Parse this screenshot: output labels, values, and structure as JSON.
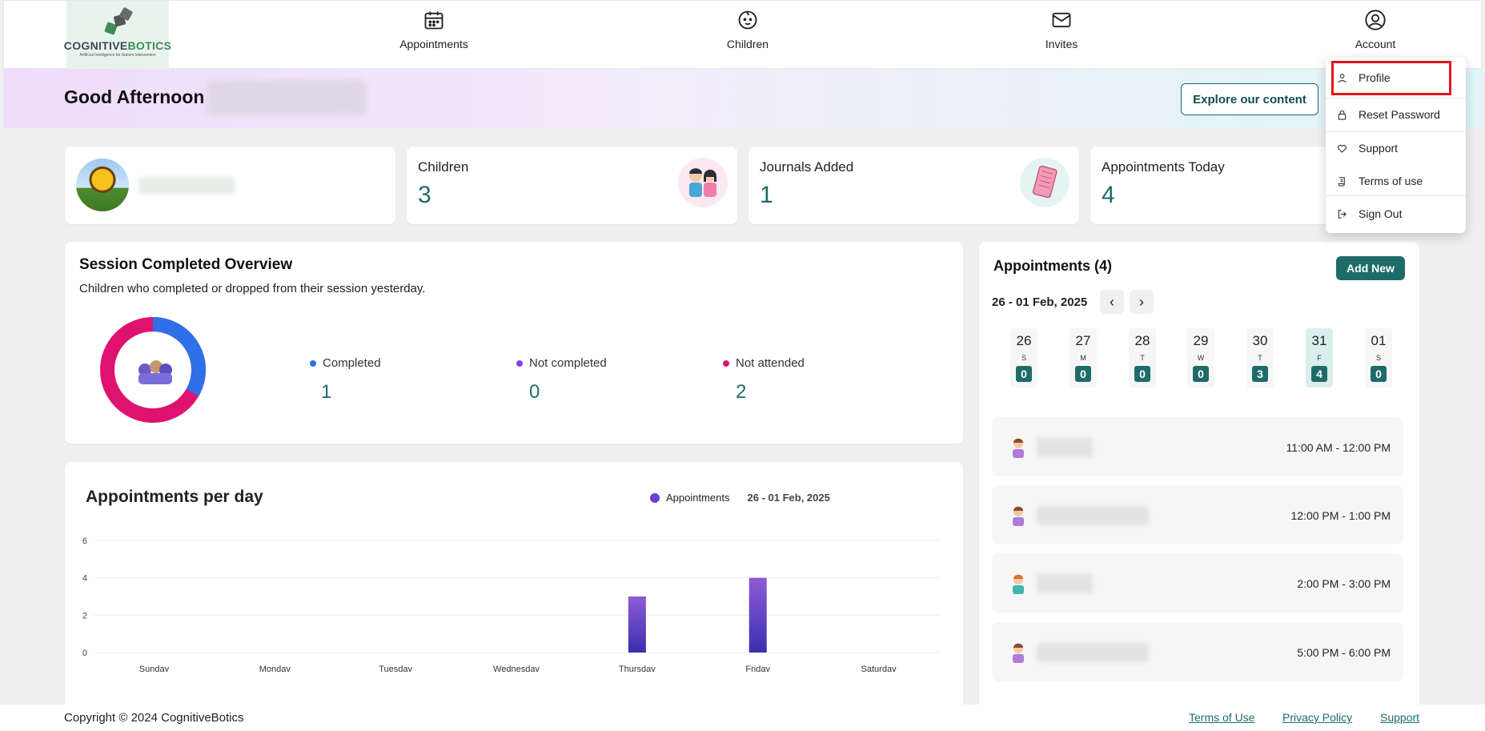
{
  "nav": {
    "logo": {
      "brand_a": "COGNITIVE",
      "brand_b": "BOTICS",
      "tagline": "Artificial Intelligence for Autism Intervention"
    },
    "items": [
      {
        "label": "Appointments",
        "icon": "calendar-icon"
      },
      {
        "label": "Children",
        "icon": "baby-face-icon"
      },
      {
        "label": "Invites",
        "icon": "envelope-icon"
      },
      {
        "label": "Account",
        "icon": "user-circle-icon"
      }
    ]
  },
  "banner": {
    "greeting": "Good Afternoon",
    "explore_label": "Explore our content"
  },
  "stats": [
    {
      "title": "Children",
      "value": "3"
    },
    {
      "title": "Journals Added",
      "value": "1"
    },
    {
      "title": "Appointments Today",
      "value": "4"
    }
  ],
  "session": {
    "title": "Session Completed Overview",
    "subtitle": "Children who completed or dropped from their session yesterday.",
    "legend": [
      {
        "label": "Completed",
        "value": "1",
        "color": "#2f6fe8"
      },
      {
        "label": "Not completed",
        "value": "0",
        "color": "#8a3ff0"
      },
      {
        "label": "Not attended",
        "value": "2",
        "color": "#e0126f"
      }
    ]
  },
  "chart_data": {
    "type": "bar",
    "title": "Appointments per day",
    "categories": [
      "Sundav",
      "Mondav",
      "Tuesdav",
      "Wednesdav",
      "Thursdav",
      "Fridav",
      "Saturdav"
    ],
    "series": [
      {
        "name": "Appointments",
        "values": [
          0,
          0,
          0,
          0,
          3,
          4,
          0
        ]
      }
    ],
    "ylim": [
      0,
      6
    ],
    "yticks": [
      "0",
      "2",
      "4",
      "6"
    ],
    "date_range": "26 - 01 Feb, 2025",
    "colors": {
      "top": "#8f5bd6",
      "bottom": "#3a2fb0"
    },
    "grid": true,
    "legend_position": "top-right"
  },
  "appointments": {
    "title": "Appointments (4)",
    "add_label": "Add New",
    "range_label": "26 - 01 Feb, 2025",
    "prev": "‹",
    "next": "›",
    "days": [
      {
        "num": "26",
        "name": "S",
        "count": "0"
      },
      {
        "num": "27",
        "name": "M",
        "count": "0"
      },
      {
        "num": "28",
        "name": "T",
        "count": "0"
      },
      {
        "num": "29",
        "name": "W",
        "count": "0"
      },
      {
        "num": "30",
        "name": "T",
        "count": "3"
      },
      {
        "num": "31",
        "name": "F",
        "count": "4",
        "active": true
      },
      {
        "num": "01",
        "name": "S",
        "count": "0"
      }
    ],
    "items": [
      {
        "time": "11:00 AM - 12:00 PM"
      },
      {
        "time": "12:00 PM - 1:00 PM"
      },
      {
        "time": "2:00 PM - 3:00 PM"
      },
      {
        "time": "5:00 PM - 6:00 PM"
      }
    ]
  },
  "account_menu": {
    "items": [
      {
        "label": "Profile",
        "icon": "user-icon"
      },
      {
        "label": "Reset Password",
        "icon": "lock-icon"
      },
      {
        "label": "Support",
        "icon": "heart-hands-icon"
      },
      {
        "label": "Terms of use",
        "icon": "scroll-icon"
      },
      {
        "label": "Sign Out",
        "icon": "sign-out-icon"
      }
    ]
  },
  "footer": {
    "copyright": "Copyright © 2024 CognitiveBotics",
    "links": [
      "Terms of Use",
      "Privacy Policy",
      "Support"
    ]
  }
}
